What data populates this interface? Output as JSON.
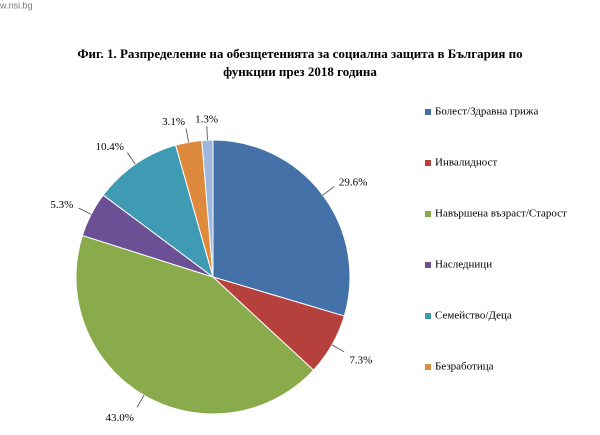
{
  "source": "w.nsi.bg",
  "chart_data": {
    "type": "pie",
    "title": [
      "Фиг. 1. Разпределение на обезщетенията за социална защита в България по",
      "функции през 2018 година"
    ],
    "categories": [
      "Болест/Здравна грижа",
      "Инвалидност",
      "Навършена възраст/Старост",
      "Наследници",
      "Семейство/Деца",
      "Безработица",
      null
    ],
    "values": [
      29.6,
      7.3,
      43.0,
      5.3,
      10.4,
      3.1,
      1.3
    ],
    "value_labels": [
      "29.6%",
      "7.3%",
      "43.0%",
      "5.3%",
      "10.4%",
      "3.1%",
      "1.3%"
    ],
    "colors": [
      "#4472a8",
      "#b5403c",
      "#8aab4c",
      "#6b5095",
      "#3f9ab3",
      "#dd8a3d",
      "#9db7de"
    ],
    "legend": "right"
  }
}
